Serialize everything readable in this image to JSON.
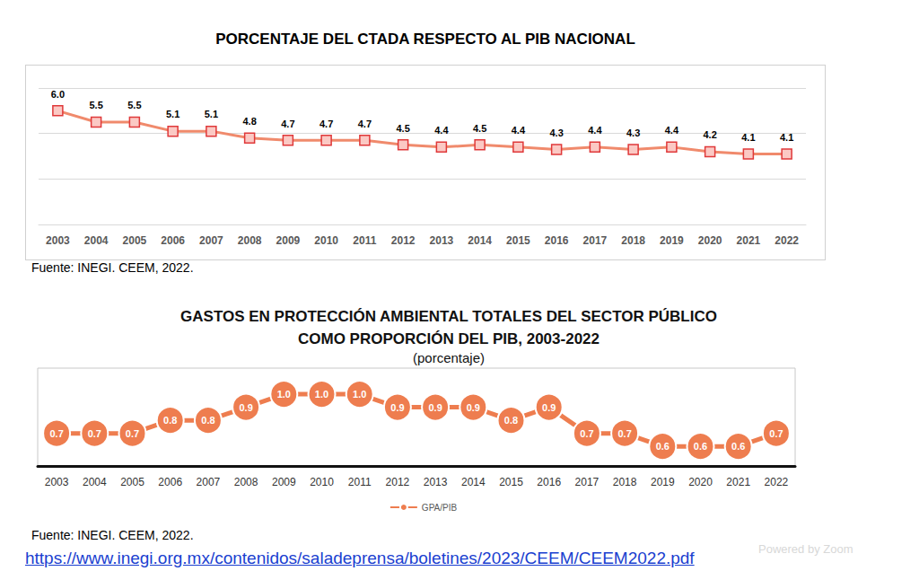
{
  "chart_data": [
    {
      "type": "line",
      "title": "PORCENTAJE DEL CTADA RESPECTO AL PIB NACIONAL",
      "categories": [
        "2003",
        "2004",
        "2005",
        "2006",
        "2007",
        "2008",
        "2009",
        "2010",
        "2011",
        "2012",
        "2013",
        "2014",
        "2015",
        "2016",
        "2017",
        "2018",
        "2019",
        "2020",
        "2021",
        "2022"
      ],
      "values": [
        6.0,
        5.5,
        5.5,
        5.1,
        5.1,
        4.8,
        4.7,
        4.7,
        4.7,
        4.5,
        4.4,
        4.5,
        4.4,
        4.3,
        4.4,
        4.3,
        4.4,
        4.2,
        4.1,
        4.1
      ],
      "value_labels": [
        "6.0",
        "5.5",
        "5.5",
        "5.1",
        "5.1",
        "4.8",
        "4.7",
        "4.7",
        "4.7",
        "4.5",
        "4.4",
        "4.5",
        "4.4",
        "4.3",
        "4.4",
        "4.3",
        "4.4",
        "4.2",
        "4.1",
        "4.1"
      ],
      "color": "#f08a6c",
      "marker": "square",
      "line_style": "solid",
      "ylim": [
        1,
        7
      ],
      "yticks": [
        1,
        3,
        5,
        7
      ],
      "grid": true,
      "data_labels": true,
      "tick_labels": "x",
      "annotations": [
        "Fuente: INEGI. CEEM, 2022."
      ]
    },
    {
      "type": "line",
      "title": "GASTOS EN PROTECCIÓN AMBIENTAL TOTALES DEL SECTOR PÚBLICO\nCOMO PROPORCIÓN DEL PIB, 2003-2022",
      "subtitle": "(porcentaje)",
      "categories": [
        "2003",
        "2004",
        "2005",
        "2006",
        "2007",
        "2008",
        "2009",
        "2010",
        "2011",
        "2012",
        "2013",
        "2014",
        "2015",
        "2016",
        "2017",
        "2018",
        "2019",
        "2020",
        "2021",
        "2022"
      ],
      "series": [
        {
          "name": "GPA/PIB",
          "color": "#ee7d4f",
          "values": [
            0.7,
            0.7,
            0.7,
            0.8,
            0.8,
            0.9,
            1.0,
            1.0,
            1.0,
            0.9,
            0.9,
            0.9,
            0.8,
            0.9,
            0.7,
            0.7,
            0.6,
            0.6,
            0.6,
            0.7
          ],
          "value_labels": [
            "0.7",
            "0.7",
            "0.7",
            "0.8",
            "0.8",
            "0.9",
            "1.0",
            "1.0",
            "1.0",
            "0.9",
            "0.9",
            "0.9",
            "0.8",
            "0.9",
            "0.7",
            "0.7",
            "0.6",
            "0.6",
            "0.6",
            "0.7"
          ]
        }
      ],
      "marker": "circle",
      "line_style": "solid",
      "ylim": [
        0.45,
        1.2
      ],
      "yticks": [],
      "grid": false,
      "data_labels": true,
      "tick_labels": "x",
      "legend": "bottom",
      "annotations": [
        "Fuente: INEGI. CEEM, 2022."
      ]
    }
  ],
  "link": "https://www.inegi.org.mx/contenidos/saladeprensa/boletines/2023/CEEM/CEEM2022.pdf",
  "watermark": "Powered by Zoom"
}
